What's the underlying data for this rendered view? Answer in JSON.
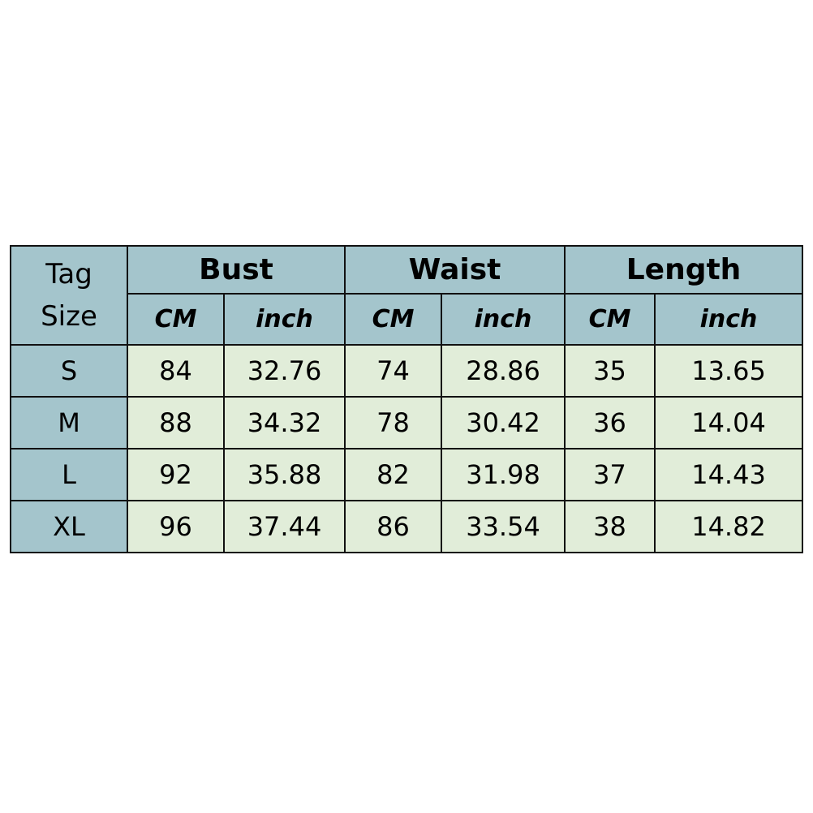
{
  "table": {
    "tag_header": [
      "Tag",
      "Size"
    ],
    "groups": [
      "Bust",
      "Waist",
      "Length"
    ],
    "units": [
      "CM",
      "inch",
      "CM",
      "inch",
      "CM",
      "inch"
    ],
    "rows": [
      {
        "size": "S",
        "values": [
          "84",
          "32.76",
          "74",
          "28.86",
          "35",
          "13.65"
        ]
      },
      {
        "size": "M",
        "values": [
          "88",
          "34.32",
          "78",
          "30.42",
          "36",
          "14.04"
        ]
      },
      {
        "size": "L",
        "values": [
          "92",
          "35.88",
          "82",
          "31.98",
          "37",
          "14.43"
        ]
      },
      {
        "size": "XL",
        "values": [
          "96",
          "37.44",
          "86",
          "33.54",
          "38",
          "14.82"
        ]
      }
    ],
    "colors": {
      "header": "#a4c5cc",
      "body": "#e1edd9",
      "border": "#111111"
    }
  }
}
